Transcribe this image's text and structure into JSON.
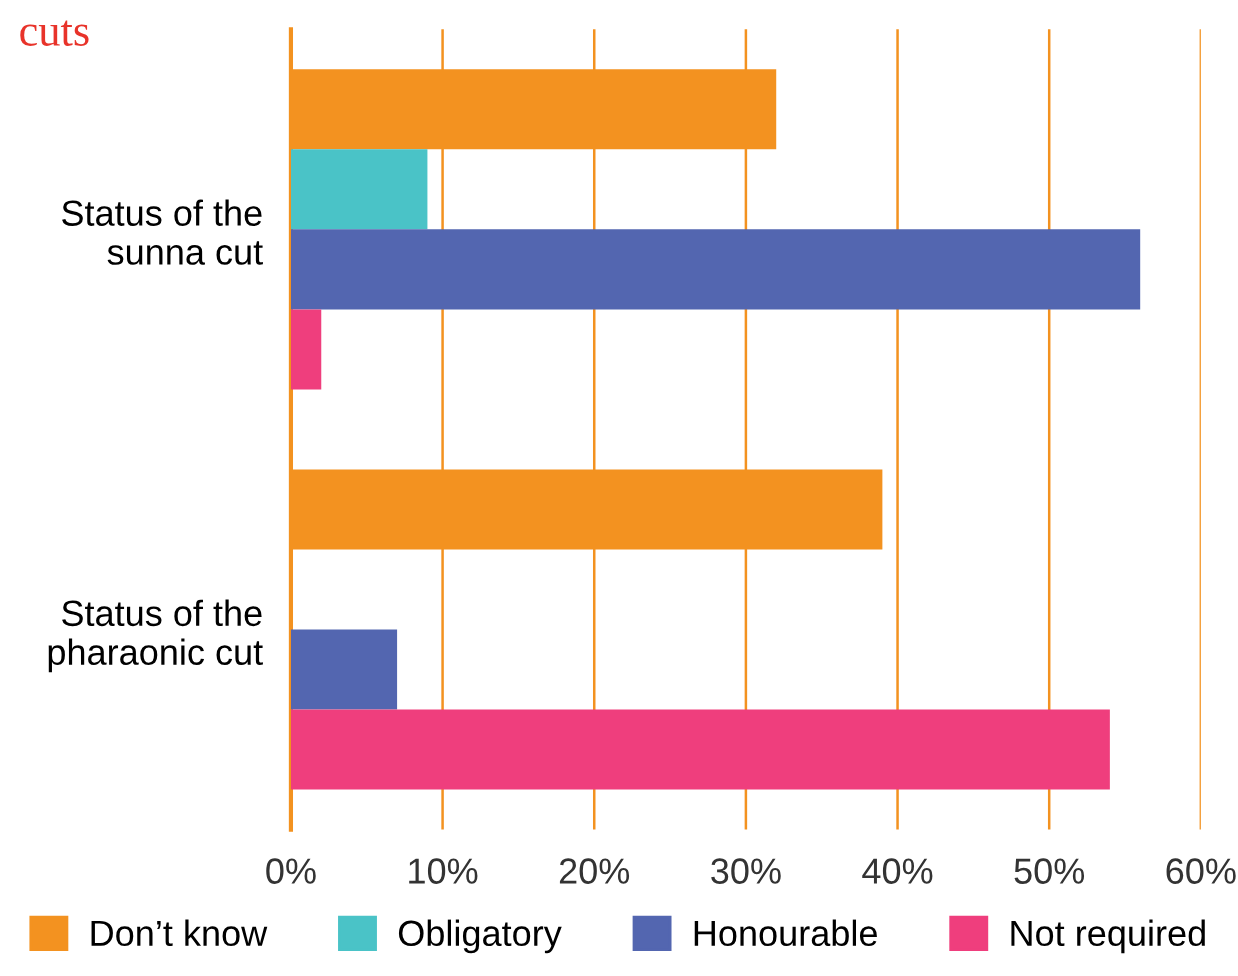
{
  "chart_data": {
    "type": "bar",
    "orientation": "horizontal",
    "title": "cuts",
    "categories": [
      "Status of the\nsunna cut",
      "Status of the\npharaonic cut"
    ],
    "series": [
      {
        "name": "Don’t know",
        "color": "#f39220",
        "values": [
          32,
          39
        ]
      },
      {
        "name": "Obligatory",
        "color": "#4ac3c7",
        "values": [
          9,
          0
        ]
      },
      {
        "name": "Honourable",
        "color": "#5366b0",
        "values": [
          56,
          7
        ]
      },
      {
        "name": "Not required",
        "color": "#ef3e7d",
        "values": [
          2,
          54
        ]
      }
    ],
    "xlim": [
      0,
      60
    ],
    "xticks": [
      {
        "value": 0,
        "label": "0%"
      },
      {
        "value": 10,
        "label": "10%"
      },
      {
        "value": 20,
        "label": "20%"
      },
      {
        "value": 30,
        "label": "30%"
      },
      {
        "value": 40,
        "label": "40%"
      },
      {
        "value": 50,
        "label": "50%"
      },
      {
        "value": 60,
        "label": "60%"
      }
    ],
    "grid": "x",
    "legend": "bottom"
  }
}
